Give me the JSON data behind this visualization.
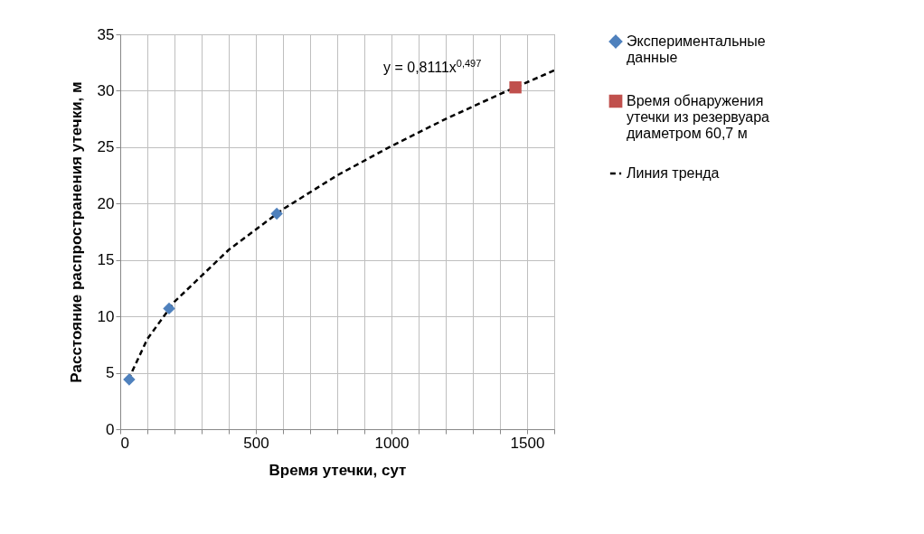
{
  "chart_data": {
    "type": "scatter",
    "xlabel": "Время утечки, сут",
    "ylabel": "Расстояние распространения утечки, м",
    "xlim": [
      0,
      1600
    ],
    "ylim": [
      0,
      35
    ],
    "xticks": [
      0,
      {
        "value": 100,
        "label": null
      },
      {
        "value": 200,
        "label": null
      },
      {
        "value": 300,
        "label": null
      },
      {
        "value": 400,
        "label": null
      },
      500,
      {
        "value": 600,
        "label": null
      },
      {
        "value": 700,
        "label": null
      },
      {
        "value": 800,
        "label": null
      },
      {
        "value": 900,
        "label": null
      },
      1000,
      {
        "value": 1100,
        "label": null
      },
      {
        "value": 1200,
        "label": null
      },
      {
        "value": 1300,
        "label": null
      },
      {
        "value": 1400,
        "label": null
      },
      1500,
      {
        "value": 1600,
        "label": null
      }
    ],
    "yticks": [
      0,
      5,
      10,
      15,
      20,
      25,
      30,
      35
    ],
    "grid": true,
    "legend": "right",
    "annotations": [
      "y = 0,8111x$^{0,497}$"
    ],
    "series": [
      {
        "name": "Экспериментальные данные",
        "marker": "diamond",
        "color": "#4f81bd",
        "x": [
          33,
          180,
          577
        ],
        "values": [
          4.4,
          10.7,
          19.1
        ]
      },
      {
        "name": "Время обнаружения утечки из резервуара диаметром 60,7 м",
        "marker": "square",
        "color": "#c0504d",
        "x": [
          1457
        ],
        "values": [
          30.3
        ]
      },
      {
        "name": "Линия тренда",
        "type": "line",
        "line_style": "dashed",
        "color": "#000000",
        "x": [
          30,
          100,
          200,
          400,
          600,
          800,
          1000,
          1200,
          1400,
          1600
        ],
        "values": [
          4.4,
          8.0,
          11.3,
          15.9,
          19.5,
          22.5,
          25.1,
          27.5,
          29.7,
          31.8
        ]
      }
    ]
  }
}
